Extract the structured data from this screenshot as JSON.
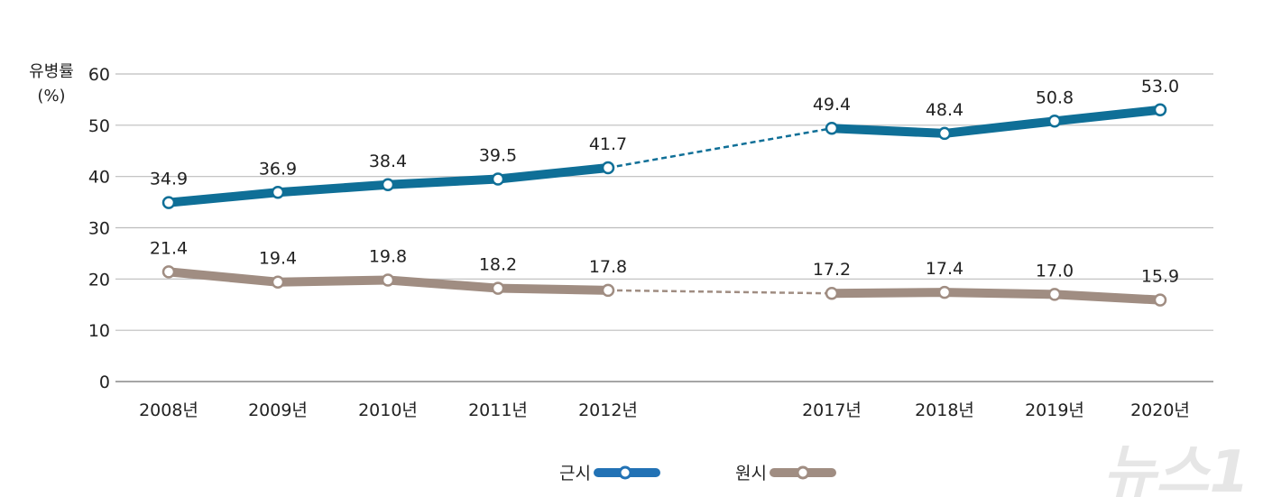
{
  "chart_data": {
    "type": "line",
    "ylabel": "유병률\n(%)",
    "ylabel_lines": [
      "유병률",
      "(%)"
    ],
    "ylim": [
      0,
      60
    ],
    "yticks": [
      0,
      10,
      20,
      30,
      40,
      50,
      60
    ],
    "grid": true,
    "categories": [
      "2008년",
      "2009년",
      "2010년",
      "2011년",
      "2012년",
      "2017년",
      "2018년",
      "2019년",
      "2020년"
    ],
    "gap_after_index": 4,
    "series": [
      {
        "name": "근시",
        "color": "#0f6f97",
        "legend_color": "#2272b5",
        "values": [
          34.9,
          36.9,
          38.4,
          39.5,
          41.7,
          49.4,
          48.4,
          50.8,
          53.0
        ],
        "labels": [
          "34.9",
          "36.9",
          "38.4",
          "39.5",
          "41.7",
          "49.4",
          "48.4",
          "50.8",
          "53.0"
        ]
      },
      {
        "name": "원시",
        "color": "#a08d82",
        "legend_color": "#a08d82",
        "values": [
          21.4,
          19.4,
          19.8,
          18.2,
          17.8,
          17.2,
          17.4,
          17.0,
          15.9
        ],
        "labels": [
          "21.4",
          "19.4",
          "19.8",
          "18.2",
          "17.8",
          "17.2",
          "17.4",
          "17.0",
          "15.9"
        ]
      }
    ],
    "legend_placement": "bottom"
  },
  "watermark": "뉴스1"
}
